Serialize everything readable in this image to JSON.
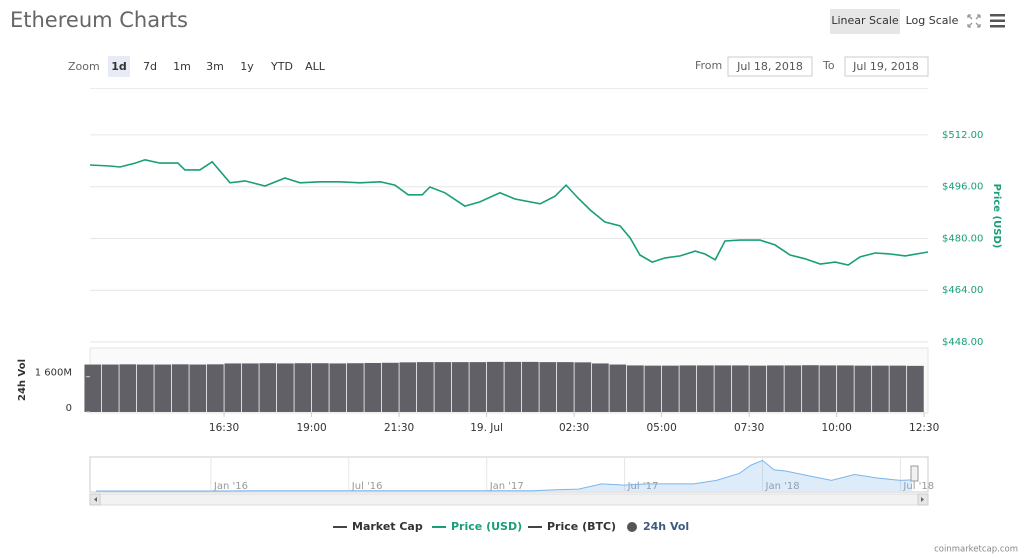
{
  "header": {
    "title": "Ethereum Charts",
    "scale_buttons": [
      "Linear Scale",
      "Log Scale"
    ],
    "scale_selected": 0
  },
  "zoom": {
    "label": "Zoom",
    "options": [
      "1d",
      "7d",
      "1m",
      "3m",
      "1y",
      "YTD",
      "ALL"
    ],
    "selected": 0
  },
  "range": {
    "from_label": "From",
    "from": "Jul 18, 2018",
    "to_label": "To",
    "to": "Jul 19, 2018"
  },
  "chart_data": [
    {
      "type": "line",
      "y_label": "Price (USD)",
      "color": "#1a9e7a",
      "x": [
        12.67,
        13.24,
        13.53,
        13.96,
        14.24,
        14.67,
        15.18,
        15.38,
        15.81,
        16.16,
        16.67,
        17.1,
        17.67,
        18.24,
        18.67,
        19.24,
        19.81,
        20.38,
        20.96,
        21.38,
        21.76,
        22.16,
        22.38,
        22.81,
        23.38,
        23.81,
        24.38,
        24.81,
        25.53,
        25.96,
        26.27,
        26.61,
        26.96,
        27.38,
        27.81,
        28.1,
        28.38,
        28.73,
        29.1,
        29.53,
        29.96,
        30.24,
        30.53,
        30.81,
        31.24,
        31.81,
        32.24,
        32.67,
        33.1,
        33.53,
        33.96,
        34.33,
        34.67,
        35.1,
        35.53,
        35.96,
        36.61
      ],
      "values": [
        502.7,
        502.4,
        502.1,
        503.3,
        504.3,
        503.3,
        503.3,
        501.2,
        501.2,
        503.7,
        497.2,
        497.8,
        496.2,
        498.7,
        497.2,
        497.5,
        497.5,
        497.2,
        497.5,
        496.5,
        493.5,
        493.5,
        495.9,
        494.1,
        490,
        491.3,
        494.1,
        492.2,
        490.7,
        493.1,
        496.5,
        492.5,
        488.8,
        485.1,
        483.9,
        480.2,
        474.9,
        472.7,
        474,
        474.6,
        476.1,
        475.2,
        473.4,
        479.2,
        479.5,
        479.5,
        478,
        474.9,
        473.7,
        472.1,
        472.7,
        471.8,
        474.3,
        475.5,
        475.2,
        474.6,
        475.8
      ],
      "xlim": [
        12.67,
        36.61
      ],
      "ylim": [
        448,
        526.5
      ],
      "yticks": [
        {
          "value": 448,
          "label": "$448.00"
        },
        {
          "value": 464,
          "label": "$464.00"
        },
        {
          "value": 480,
          "label": "$480.00"
        },
        {
          "value": 496,
          "label": "$496.00"
        },
        {
          "value": 512,
          "label": "$512.00"
        }
      ],
      "grid": true
    },
    {
      "type": "bar",
      "y_label": "24h Vol",
      "color": "#606066",
      "x": [
        12.75,
        13.25,
        13.75,
        14.25,
        14.75,
        15.25,
        15.75,
        16.25,
        16.75,
        17.25,
        17.75,
        18.25,
        18.75,
        19.25,
        19.75,
        20.25,
        20.75,
        21.25,
        21.75,
        22.25,
        22.75,
        23.25,
        23.75,
        24.25,
        24.75,
        25.25,
        25.75,
        26.25,
        26.75,
        27.25,
        27.75,
        28.25,
        28.75,
        29.25,
        29.75,
        30.25,
        30.75,
        31.25,
        31.75,
        32.25,
        32.75,
        33.25,
        33.75,
        34.25,
        34.75,
        35.25,
        35.75,
        36.25
      ],
      "values": [
        2150000000,
        2150000000,
        2160000000,
        2150000000,
        2150000000,
        2160000000,
        2150000000,
        2160000000,
        2200000000,
        2200000000,
        2210000000,
        2200000000,
        2210000000,
        2210000000,
        2200000000,
        2210000000,
        2220000000,
        2230000000,
        2250000000,
        2260000000,
        2260000000,
        2260000000,
        2260000000,
        2270000000,
        2270000000,
        2270000000,
        2260000000,
        2260000000,
        2250000000,
        2200000000,
        2150000000,
        2110000000,
        2100000000,
        2100000000,
        2110000000,
        2110000000,
        2110000000,
        2110000000,
        2100000000,
        2110000000,
        2110000000,
        2120000000,
        2110000000,
        2110000000,
        2100000000,
        2100000000,
        2100000000,
        2090000000
      ],
      "xlim": [
        12.67,
        36.61
      ],
      "ylim": [
        0,
        2900000000
      ],
      "yticks": [
        0,
        {
          "value": 1600000000,
          "label": "1 600M"
        }
      ],
      "xticks": [
        {
          "value": 16.5,
          "label": "16:30"
        },
        {
          "value": 19,
          "label": "19:00"
        },
        {
          "value": 21.5,
          "label": "21:30"
        },
        {
          "value": 24,
          "label": "19. Jul"
        },
        {
          "value": 26.5,
          "label": "02:30"
        },
        {
          "value": 29,
          "label": "05:00"
        },
        {
          "value": 31.5,
          "label": "07:30"
        },
        {
          "value": 34,
          "label": "10:00"
        },
        {
          "value": 36.5,
          "label": "12:30"
        }
      ]
    },
    {
      "type": "area",
      "color": "#7cb5ec",
      "x": [
        -5,
        -2,
        0,
        2,
        4,
        6,
        8,
        10,
        12,
        14,
        15,
        16,
        17,
        18,
        19,
        20,
        21,
        22,
        23,
        23.5,
        24,
        24.5,
        25,
        26,
        27,
        28,
        29,
        30,
        30.5
      ],
      "values": [
        1,
        1,
        1,
        8,
        10,
        12,
        12,
        8,
        8,
        13,
        50,
        80,
        300,
        250,
        300,
        300,
        300,
        450,
        750,
        1100,
        1300,
        900,
        850,
        650,
        450,
        700,
        550,
        450,
        470
      ],
      "xlim": [
        -5.26,
        31.2
      ],
      "ylim": [
        0,
        1400
      ],
      "xticks": [
        {
          "value": 0,
          "label": "Jan '16"
        },
        {
          "value": 6,
          "label": "Jul '16"
        },
        {
          "value": 12,
          "label": "Jan '17"
        },
        {
          "value": 18,
          "label": "Jul '17"
        },
        {
          "value": 24,
          "label": "Jan '18"
        },
        {
          "value": 30,
          "label": "Jul '18"
        }
      ]
    }
  ],
  "legend": [
    {
      "name": "Market Cap",
      "color": "#434348",
      "text_color": "#333333",
      "symbol": "line"
    },
    {
      "name": "Price (USD)",
      "color": "#1a9e7a",
      "text_color": "#1a9e7a",
      "symbol": "line"
    },
    {
      "name": "Price (BTC)",
      "color": "#434348",
      "text_color": "#333333",
      "symbol": "line"
    },
    {
      "name": "24h Vol",
      "color": "#555555",
      "text_color": "#3d5a80",
      "symbol": "dot"
    }
  ],
  "footer": {
    "credit": "coinmarketcap.com"
  }
}
